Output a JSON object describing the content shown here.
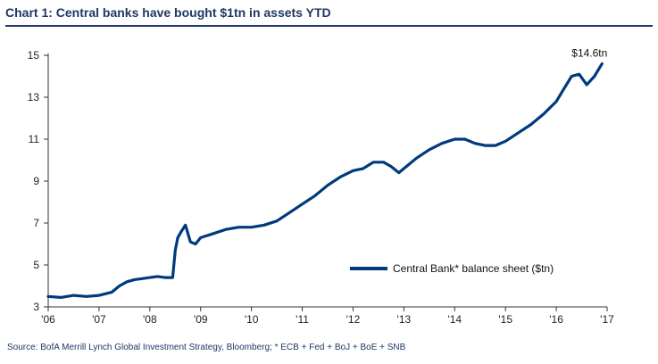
{
  "title": "Chart 1:  Central banks have bought $1tn in assets YTD",
  "source": "Source: BofA Merrill Lynch Global Investment Strategy, Bloomberg; * ECB + Fed + BoJ + BoE + SNB",
  "colors": {
    "series": "#003a7d",
    "title": "#1f3864"
  },
  "chart_data": {
    "type": "line",
    "xlim": [
      2006,
      2017
    ],
    "ylim": [
      3,
      15
    ],
    "yticks": [
      3,
      5,
      7,
      9,
      11,
      13,
      15
    ],
    "xtick_labels": [
      "'06",
      "'07",
      "'08",
      "'09",
      "'10",
      "'11",
      "'12",
      "'13",
      "'14",
      "'15",
      "'16",
      "'17"
    ],
    "legend": {
      "label": "Central Bank* balance sheet ($tn)",
      "position": "bottom-right"
    },
    "annotation": {
      "text": "$14.6tn",
      "x": 2016.9,
      "y": 14.6
    },
    "grid": false,
    "series": [
      {
        "name": "Central Bank* balance sheet ($tn)",
        "x": [
          2006.0,
          2006.25,
          2006.5,
          2006.75,
          2007.0,
          2007.25,
          2007.4,
          2007.55,
          2007.7,
          2007.85,
          2008.0,
          2008.15,
          2008.3,
          2008.45,
          2008.5,
          2008.55,
          2008.62,
          2008.7,
          2008.8,
          2008.9,
          2009.0,
          2009.25,
          2009.5,
          2009.75,
          2010.0,
          2010.25,
          2010.5,
          2010.75,
          2011.0,
          2011.25,
          2011.5,
          2011.75,
          2012.0,
          2012.2,
          2012.4,
          2012.6,
          2012.75,
          2012.9,
          2013.0,
          2013.25,
          2013.5,
          2013.75,
          2014.0,
          2014.2,
          2014.4,
          2014.6,
          2014.8,
          2015.0,
          2015.25,
          2015.5,
          2015.75,
          2016.0,
          2016.15,
          2016.3,
          2016.45,
          2016.6,
          2016.75,
          2016.9
        ],
        "values": [
          3.5,
          3.45,
          3.55,
          3.5,
          3.55,
          3.7,
          4.0,
          4.2,
          4.3,
          4.35,
          4.4,
          4.45,
          4.4,
          4.4,
          5.7,
          6.3,
          6.6,
          6.9,
          6.1,
          6.0,
          6.3,
          6.5,
          6.7,
          6.8,
          6.8,
          6.9,
          7.1,
          7.5,
          7.9,
          8.3,
          8.8,
          9.2,
          9.5,
          9.6,
          9.9,
          9.9,
          9.7,
          9.4,
          9.6,
          10.1,
          10.5,
          10.8,
          11.0,
          11.0,
          10.8,
          10.7,
          10.7,
          10.9,
          11.3,
          11.7,
          12.2,
          12.8,
          13.4,
          14.0,
          14.1,
          13.6,
          14.0,
          14.6
        ]
      }
    ]
  }
}
